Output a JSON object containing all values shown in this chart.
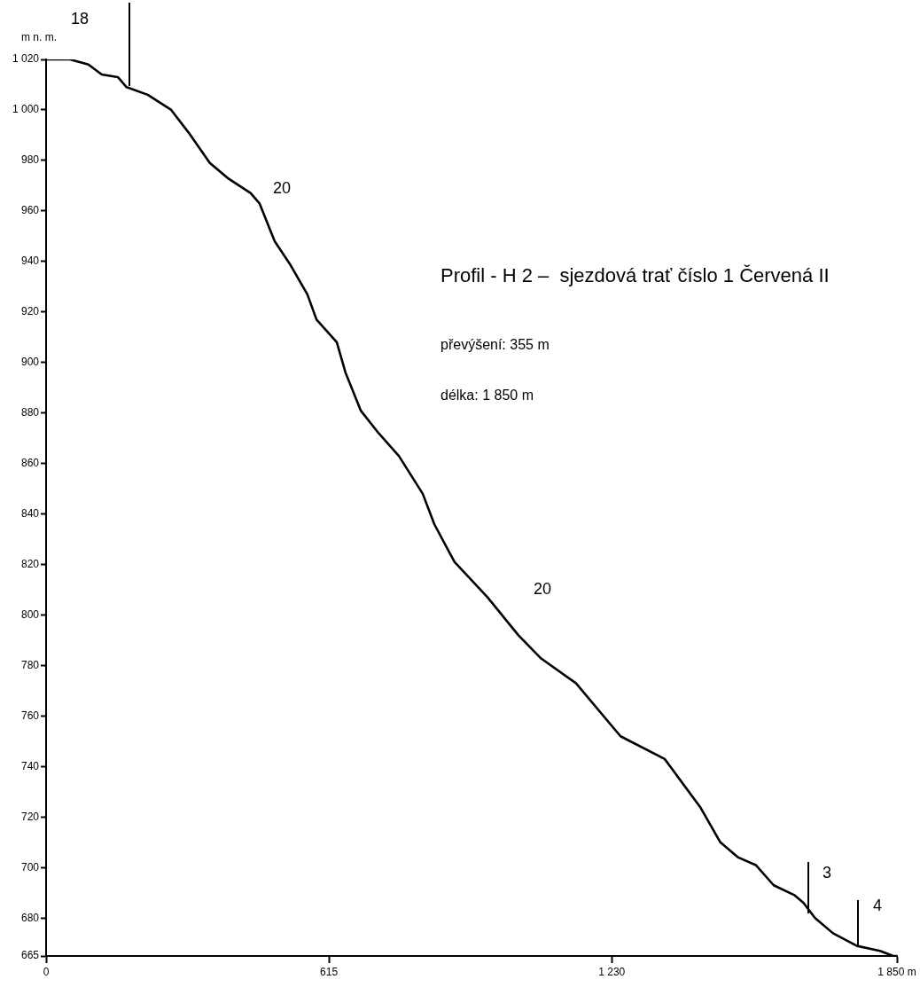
{
  "chart_data": {
    "type": "line",
    "title": "Profil - H 2 –  sjezdová trať číslo 1 Červená II",
    "ylabel": "m n. m.",
    "x": [
      0,
      52,
      92,
      121,
      156,
      175,
      221,
      272,
      310,
      356,
      395,
      445,
      464,
      497,
      530,
      568,
      588,
      632,
      651,
      684,
      723,
      767,
      819,
      844,
      888,
      960,
      1027,
      1075,
      1152,
      1249,
      1345,
      1422,
      1466,
      1505,
      1543,
      1582,
      1628,
      1647,
      1672,
      1711,
      1763,
      1813,
      1842,
      1850
    ],
    "series": [
      {
        "color": "#000000",
        "values": [
          1020,
          1020,
          1018,
          1014,
          1013,
          1009,
          1006,
          1000,
          991,
          979,
          973,
          967,
          963,
          948,
          939,
          927,
          917,
          908,
          896,
          881,
          872,
          863,
          848,
          836,
          821,
          807,
          792,
          783,
          773,
          752,
          743,
          724,
          710,
          704,
          701,
          693,
          689,
          686,
          680,
          674,
          669,
          667,
          665,
          665
        ]
      }
    ],
    "xlim": [
      0,
      1850
    ],
    "xticks": [
      0,
      615,
      {
        "value": 1230,
        "label": "1 230"
      },
      {
        "value": 1850,
        "label": "1 850 m"
      }
    ],
    "ylim": [
      665,
      1020
    ],
    "yticks": [
      665,
      680,
      700,
      720,
      740,
      760,
      780,
      800,
      820,
      840,
      860,
      880,
      900,
      920,
      940,
      960,
      980,
      {
        "value": 1000,
        "label": "1 000"
      },
      {
        "value": 1020,
        "label": "1 020"
      }
    ],
    "marker": "none",
    "line_style": "solid",
    "legend": false,
    "annotations": [
      "18",
      "20",
      "20",
      "3",
      "4",
      "převýšení: 355 m",
      "délka: 1 850 m"
    ]
  }
}
